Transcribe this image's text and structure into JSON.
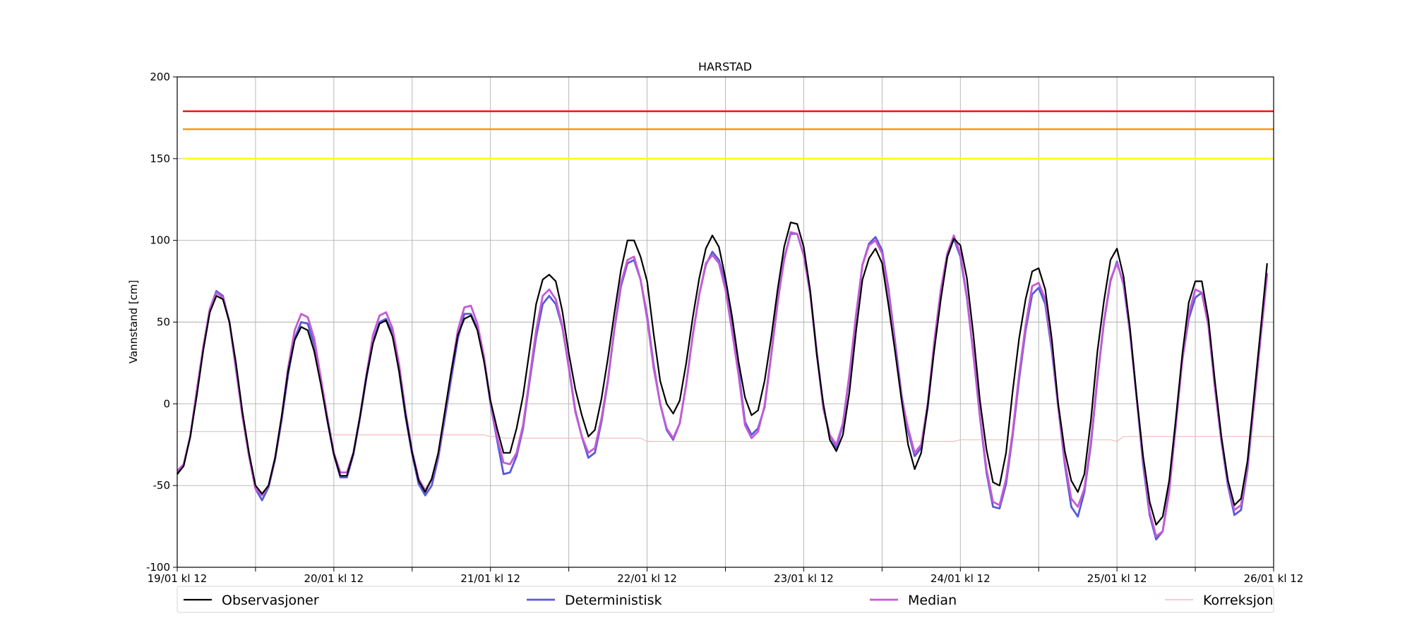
{
  "chart_data": {
    "type": "line",
    "title": "HARSTAD",
    "xlabel": "",
    "ylabel": "Vannstand [cm]",
    "ylim": [
      -100,
      200
    ],
    "yticks": [
      -100,
      -50,
      0,
      50,
      100,
      150,
      200
    ],
    "xlim": [
      0,
      168
    ],
    "xtick_hours": [
      0,
      12,
      24,
      36,
      48,
      60,
      72,
      84,
      96,
      108,
      120,
      132,
      144,
      156,
      168
    ],
    "xtick_labels": [
      "19/01 kl 12",
      "",
      "20/01 kl 12",
      "",
      "21/01 kl 12",
      "",
      "22/01 kl 12",
      "",
      "23/01 kl 12",
      "",
      "24/01 kl 12",
      "",
      "25/01 kl 12",
      "",
      "26/01 kl 12"
    ],
    "grid": true,
    "legend_position": "bottom",
    "thresholds": [
      {
        "value": 179,
        "color": "#ff1a1a"
      },
      {
        "value": 168,
        "color": "#ff9900"
      },
      {
        "value": 150,
        "color": "#ffff1a"
      }
    ],
    "series": [
      {
        "name": "Observasjoner",
        "color": "#000000",
        "width": 2.2,
        "values": [
          -43,
          -38,
          -20,
          5,
          33,
          56,
          66,
          64,
          50,
          25,
          -5,
          -30,
          -50,
          -55,
          -50,
          -33,
          -8,
          20,
          39,
          47,
          45,
          32,
          12,
          -10,
          -31,
          -44,
          -44,
          -30,
          -8,
          17,
          37,
          49,
          51,
          41,
          20,
          -7,
          -30,
          -47,
          -54,
          -46,
          -30,
          -5,
          20,
          42,
          52,
          54,
          45,
          26,
          2,
          -15,
          -30,
          -30,
          -15,
          5,
          33,
          61,
          76,
          79,
          75,
          57,
          31,
          9,
          -7,
          -20,
          -16,
          3,
          28,
          56,
          82,
          100,
          100,
          90,
          75,
          43,
          14,
          0,
          -6,
          2,
          25,
          53,
          77,
          95,
          103,
          96,
          77,
          54,
          26,
          4,
          -7,
          -4,
          14,
          40,
          70,
          96,
          111,
          110,
          96,
          69,
          30,
          0,
          -22,
          -29,
          -19,
          7,
          44,
          76,
          89,
          95,
          86,
          60,
          32,
          2,
          -25,
          -40,
          -30,
          -1,
          33,
          64,
          90,
          101,
          97,
          77,
          42,
          2,
          -28,
          -48,
          -50,
          -30,
          7,
          40,
          64,
          81,
          83,
          70,
          40,
          0,
          -29,
          -47,
          -54,
          -43,
          -10,
          32,
          63,
          88,
          95,
          78,
          46,
          5,
          -32,
          -60,
          -74,
          -69,
          -47,
          -10,
          30,
          62,
          75,
          75,
          52,
          14,
          -20,
          -47,
          -62,
          -58,
          -35,
          5,
          45,
          86
        ]
      },
      {
        "name": "Deterministisk",
        "color": "#5a5ad6",
        "width": 2.8,
        "values": [
          -43,
          -37,
          -20,
          8,
          35,
          58,
          69,
          66,
          50,
          21,
          -7,
          -32,
          -52,
          -59,
          -51,
          -34,
          -10,
          18,
          40,
          50,
          49,
          36,
          14,
          -10,
          -31,
          -45,
          -45,
          -31,
          -9,
          16,
          38,
          50,
          52,
          43,
          20,
          -8,
          -31,
          -49,
          -56,
          -50,
          -33,
          -9,
          16,
          40,
          55,
          55,
          46,
          28,
          0,
          -22,
          -43,
          -42,
          -32,
          -15,
          14,
          41,
          61,
          66,
          61,
          47,
          23,
          -4,
          -20,
          -33,
          -30,
          -11,
          14,
          46,
          72,
          86,
          88,
          76,
          54,
          24,
          0,
          -16,
          -22,
          -12,
          12,
          42,
          67,
          85,
          93,
          88,
          74,
          48,
          21,
          -11,
          -19,
          -15,
          -2,
          29,
          62,
          89,
          104,
          104,
          91,
          67,
          32,
          -3,
          -19,
          -27,
          -13,
          17,
          53,
          85,
          98,
          102,
          94,
          70,
          38,
          5,
          -17,
          -32,
          -27,
          -2,
          35,
          67,
          90,
          101,
          90,
          65,
          30,
          -8,
          -42,
          -63,
          -64,
          -49,
          -20,
          15,
          45,
          67,
          71,
          61,
          33,
          -2,
          -37,
          -63,
          -69,
          -54,
          -25,
          15,
          50,
          75,
          87,
          73,
          43,
          4,
          -37,
          -68,
          -83,
          -78,
          -52,
          -14,
          27,
          52,
          65,
          68,
          48,
          10,
          -23,
          -50,
          -68,
          -65,
          -40,
          0,
          40,
          79
        ]
      },
      {
        "name": "Median",
        "color": "#c45bd6",
        "width": 2.8,
        "values": [
          -41,
          -37,
          -20,
          8,
          35,
          58,
          68,
          65,
          50,
          22,
          -8,
          -32,
          -52,
          -56,
          -50,
          -33,
          -8,
          22,
          45,
          55,
          53,
          40,
          16,
          -8,
          -30,
          -42,
          -42,
          -30,
          -8,
          18,
          42,
          54,
          56,
          46,
          24,
          -5,
          -29,
          -46,
          -53,
          -46,
          -31,
          -6,
          20,
          45,
          59,
          60,
          49,
          29,
          1,
          -20,
          -36,
          -37,
          -30,
          -13,
          16,
          45,
          66,
          70,
          64,
          48,
          22,
          -5,
          -20,
          -30,
          -27,
          -9,
          15,
          47,
          74,
          88,
          90,
          76,
          52,
          22,
          0,
          -15,
          -21,
          -12,
          12,
          42,
          67,
          86,
          91,
          86,
          70,
          45,
          18,
          -13,
          -21,
          -17,
          -1,
          30,
          63,
          88,
          105,
          104,
          91,
          67,
          31,
          -3,
          -19,
          -25,
          -12,
          18,
          54,
          85,
          97,
          100,
          92,
          68,
          36,
          3,
          -15,
          -30,
          -25,
          0,
          38,
          70,
          92,
          103,
          92,
          66,
          30,
          -7,
          -40,
          -60,
          -62,
          -46,
          -18,
          18,
          48,
          72,
          74,
          64,
          36,
          -2,
          -35,
          -58,
          -63,
          -52,
          -23,
          16,
          51,
          76,
          86,
          74,
          44,
          4,
          -34,
          -66,
          -81,
          -78,
          -54,
          -13,
          26,
          55,
          70,
          68,
          48,
          10,
          -22,
          -48,
          -65,
          -62,
          -38,
          0,
          41,
          80
        ]
      },
      {
        "name": "Korreksjon",
        "color": "#f3bcbc",
        "width": 1.2,
        "values": [
          -17,
          -17,
          -17,
          -17,
          -17,
          -17,
          -17,
          -17,
          -17,
          -17,
          -17,
          -17,
          -17,
          -17,
          -17,
          -17,
          -17,
          -17,
          -17,
          -17,
          -17,
          -17,
          -17,
          -17,
          -19,
          -19,
          -19,
          -19,
          -19,
          -19,
          -19,
          -19,
          -19,
          -19,
          -19,
          -19,
          -19,
          -19,
          -19,
          -19,
          -19,
          -19,
          -19,
          -19,
          -19,
          -19,
          -19,
          -19,
          -20,
          -20,
          -21,
          -21,
          -21,
          -21,
          -21,
          -21,
          -21,
          -21,
          -21,
          -21,
          -21,
          -21,
          -21,
          -21,
          -21,
          -21,
          -21,
          -21,
          -21,
          -21,
          -21,
          -21,
          -23,
          -23,
          -23,
          -23,
          -23,
          -23,
          -23,
          -23,
          -23,
          -23,
          -23,
          -23,
          -23,
          -23,
          -23,
          -23,
          -23,
          -23,
          -23,
          -23,
          -23,
          -23,
          -23,
          -23,
          -23,
          -23,
          -23,
          -23,
          -23,
          -23,
          -23,
          -23,
          -23,
          -23,
          -23,
          -23,
          -23,
          -23,
          -23,
          -23,
          -23,
          -23,
          -23,
          -23,
          -23,
          -23,
          -23,
          -23,
          -22,
          -22,
          -22,
          -22,
          -22,
          -22,
          -22,
          -22,
          -22,
          -22,
          -22,
          -22,
          -22,
          -22,
          -22,
          -22,
          -22,
          -22,
          -22,
          -22,
          -22,
          -22,
          -22,
          -22,
          -23,
          -20,
          -20,
          -20,
          -20,
          -20,
          -20,
          -20,
          -20,
          -20,
          -20,
          -20,
          -20,
          -20,
          -20,
          -20,
          -20,
          -20,
          -20,
          -20,
          -20,
          -20,
          -20,
          -20,
          -20
        ]
      }
    ]
  }
}
